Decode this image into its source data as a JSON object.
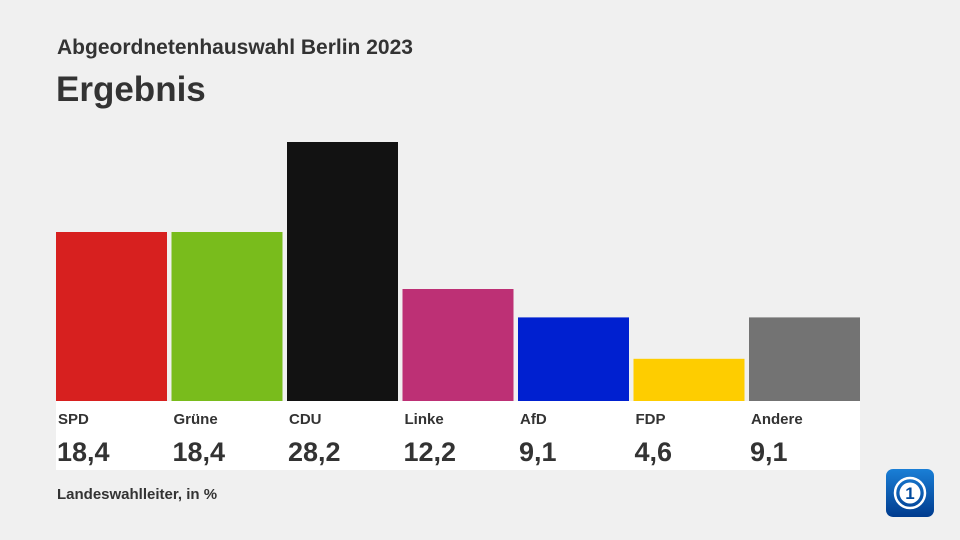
{
  "header": {
    "subtitle": "Abgeordnetenhauswahl Berlin 2023",
    "title": "Ergebnis"
  },
  "footer": {
    "source": "Landeswahlleiter, in %"
  },
  "logo": {
    "icon": "ard-tagesschau-logo-icon",
    "text": "1"
  },
  "chart_data": {
    "type": "bar",
    "categories": [
      "SPD",
      "Grüne",
      "CDU",
      "Linke",
      "AfD",
      "FDP",
      "Andere"
    ],
    "values": [
      18.4,
      18.4,
      28.2,
      12.2,
      9.1,
      4.6,
      9.1
    ],
    "value_labels": [
      "18,4",
      "18,4",
      "28,2",
      "12,2",
      "9,1",
      "4,6",
      "9,1"
    ],
    "colors": [
      "#d7201f",
      "#79bc1c",
      "#121212",
      "#bd3075",
      "#0020d0",
      "#fecd00",
      "#737373"
    ],
    "grid": false,
    "ylim": [
      0,
      28.2
    ]
  }
}
